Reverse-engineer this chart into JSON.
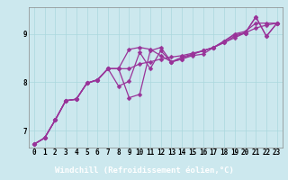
{
  "xlabel": "Windchill (Refroidissement éolien,°C)",
  "bg_color": "#cce8ee",
  "line_color": "#993399",
  "xlim": [
    -0.5,
    23.5
  ],
  "ylim": [
    6.65,
    9.55
  ],
  "xtick_vals": [
    0,
    1,
    2,
    3,
    4,
    5,
    6,
    7,
    8,
    9,
    10,
    11,
    12,
    13,
    14,
    15,
    16,
    17,
    18,
    19,
    20,
    21,
    22,
    23
  ],
  "ytick_vals": [
    7,
    8,
    9
  ],
  "grid_color": "#aad8dd",
  "xlabel_bg": "#660066",
  "xlabel_fg": "#ffffff",
  "series": [
    [
      6.72,
      6.85,
      7.22,
      7.62,
      7.65,
      7.98,
      8.05,
      8.28,
      8.28,
      8.28,
      8.38,
      8.42,
      8.48,
      8.52,
      8.55,
      8.6,
      8.65,
      8.72,
      8.82,
      8.92,
      9.02,
      9.12,
      9.18,
      9.22
    ],
    [
      6.72,
      6.85,
      7.22,
      7.62,
      7.65,
      7.98,
      8.05,
      8.28,
      7.92,
      8.02,
      8.62,
      8.28,
      8.65,
      8.42,
      8.52,
      8.58,
      8.65,
      8.72,
      8.85,
      9.0,
      9.05,
      9.22,
      9.22,
      9.22
    ],
    [
      6.72,
      6.85,
      7.22,
      7.62,
      7.65,
      7.98,
      8.05,
      8.28,
      8.28,
      7.68,
      7.75,
      8.65,
      8.72,
      8.42,
      8.48,
      8.58,
      8.65,
      8.72,
      8.82,
      8.95,
      9.02,
      9.35,
      8.95,
      9.22
    ],
    [
      6.72,
      6.85,
      7.22,
      7.62,
      7.65,
      7.98,
      8.05,
      8.28,
      8.28,
      8.68,
      8.72,
      8.68,
      8.55,
      8.42,
      8.48,
      8.55,
      8.58,
      8.72,
      8.85,
      8.98,
      9.02,
      9.35,
      8.95,
      9.22
    ]
  ]
}
